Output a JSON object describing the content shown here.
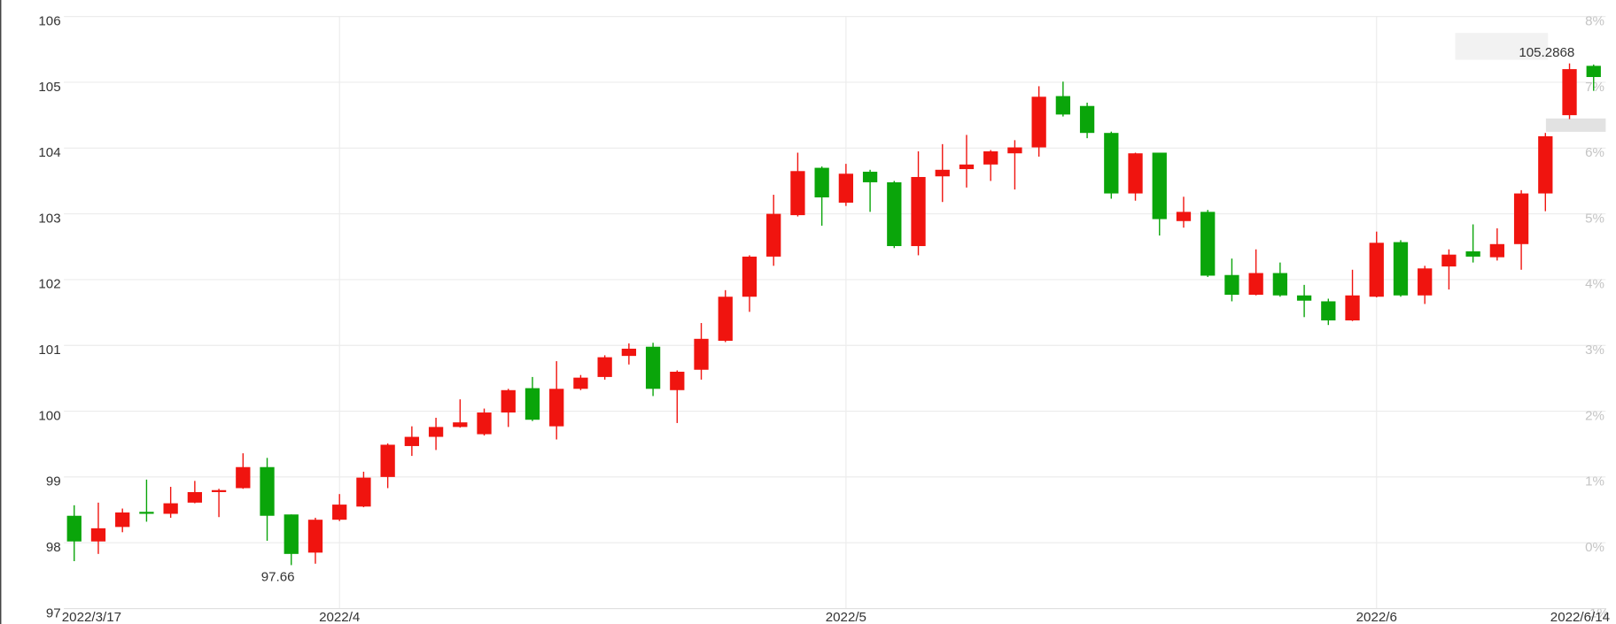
{
  "chart_data": {
    "type": "candlestick",
    "categories": [
      "2022/3/17",
      null,
      null,
      null,
      null,
      null,
      null,
      null,
      null,
      null,
      null,
      "2022/4",
      null,
      null,
      null,
      null,
      null,
      null,
      null,
      null,
      null,
      null,
      null,
      null,
      null,
      null,
      null,
      null,
      null,
      null,
      null,
      null,
      "2022/5",
      null,
      null,
      null,
      null,
      null,
      null,
      null,
      null,
      null,
      null,
      null,
      null,
      null,
      null,
      null,
      null,
      null,
      null,
      null,
      null,
      null,
      "2022/6",
      null,
      null,
      null,
      null,
      null,
      null,
      null,
      null,
      "2022/6/14"
    ],
    "open": [
      98.41,
      98.02,
      98.24,
      98.47,
      98.44,
      98.61,
      98.77,
      98.83,
      99.15,
      98.43,
      97.85,
      98.35,
      98.55,
      99.0,
      99.47,
      99.61,
      99.76,
      99.65,
      99.98,
      100.35,
      99.77,
      100.34,
      100.52,
      100.84,
      100.98,
      100.32,
      100.63,
      101.07,
      101.74,
      102.35,
      102.98,
      103.7,
      103.17,
      103.64,
      103.48,
      102.51,
      103.57,
      103.68,
      103.75,
      103.92,
      104.01,
      104.79,
      104.64,
      104.23,
      103.31,
      103.93,
      102.89,
      103.03,
      102.07,
      101.77,
      102.1,
      101.76,
      101.67,
      101.38,
      101.74,
      102.57,
      101.76,
      102.2,
      102.43,
      102.34,
      102.54,
      103.31,
      104.5,
      105.25
    ],
    "high": [
      98.57,
      98.61,
      98.52,
      98.96,
      98.85,
      98.94,
      98.82,
      99.36,
      99.29,
      98.43,
      98.38,
      98.74,
      99.08,
      99.51,
      99.77,
      99.9,
      100.18,
      100.04,
      100.34,
      100.52,
      100.76,
      100.55,
      100.85,
      101.03,
      101.04,
      100.62,
      101.34,
      101.84,
      102.37,
      103.29,
      103.93,
      103.72,
      103.76,
      103.67,
      103.5,
      103.95,
      104.06,
      104.2,
      103.97,
      104.12,
      104.94,
      105.01,
      104.69,
      104.25,
      103.93,
      103.93,
      103.26,
      103.06,
      102.32,
      102.46,
      102.26,
      101.92,
      101.71,
      102.15,
      102.73,
      102.6,
      102.21,
      102.46,
      102.84,
      102.78,
      103.36,
      104.23,
      105.2868,
      105.27
    ],
    "low": [
      97.72,
      97.83,
      98.16,
      98.32,
      98.38,
      98.6,
      98.39,
      98.82,
      98.03,
      97.66,
      97.6818,
      98.33,
      98.54,
      98.83,
      99.32,
      99.41,
      99.75,
      99.63,
      99.76,
      99.85,
      99.57,
      100.32,
      100.48,
      100.71,
      100.23,
      99.82,
      100.48,
      101.05,
      101.51,
      102.21,
      102.96,
      102.82,
      103.12,
      103.03,
      102.48,
      102.37,
      103.18,
      103.4,
      103.5,
      103.37,
      103.87,
      104.48,
      104.15,
      103.23,
      103.2,
      102.67,
      102.79,
      102.04,
      101.67,
      101.76,
      101.74,
      101.43,
      101.31,
      101.37,
      101.73,
      101.74,
      101.63,
      101.85,
      102.26,
      102.29,
      102.15,
      103.04,
      104.44,
      104.87
    ],
    "close": [
      98.02,
      98.22,
      98.46,
      98.44,
      98.6,
      98.77,
      98.8,
      99.15,
      98.41,
      97.83,
      98.35,
      98.58,
      98.99,
      99.49,
      99.61,
      99.76,
      99.83,
      99.98,
      100.32,
      99.87,
      100.34,
      100.51,
      100.82,
      100.95,
      100.34,
      100.6,
      101.1,
      101.74,
      102.35,
      103.0,
      103.65,
      103.25,
      103.61,
      103.48,
      102.51,
      103.56,
      103.67,
      103.75,
      103.95,
      104.01,
      104.78,
      104.51,
      104.23,
      103.31,
      103.92,
      102.92,
      103.03,
      102.06,
      101.77,
      102.1,
      101.76,
      101.68,
      101.38,
      101.76,
      102.56,
      101.76,
      102.17,
      102.38,
      102.35,
      102.54,
      103.31,
      104.18,
      105.2,
      105.08
    ],
    "up_color": "#f0140f",
    "down_color": "#0aa50a",
    "ylim": [
      97,
      106
    ],
    "yticks": [
      97,
      98,
      99,
      100,
      101,
      102,
      103,
      104,
      105,
      106
    ],
    "y2lim": [
      -1,
      8
    ],
    "y2ticks": [
      {
        "value": -1,
        "label": "-1%"
      },
      {
        "value": 0,
        "label": "0%"
      },
      {
        "value": 1,
        "label": "1%"
      },
      {
        "value": 2,
        "label": "2%"
      },
      {
        "value": 3,
        "label": "3%"
      },
      {
        "value": 4,
        "label": "4%"
      },
      {
        "value": 5,
        "label": "5%"
      },
      {
        "value": 6,
        "label": "6%"
      },
      {
        "value": 7,
        "label": "7%"
      },
      {
        "value": 8,
        "label": "8%"
      }
    ],
    "grid": true
  }
}
